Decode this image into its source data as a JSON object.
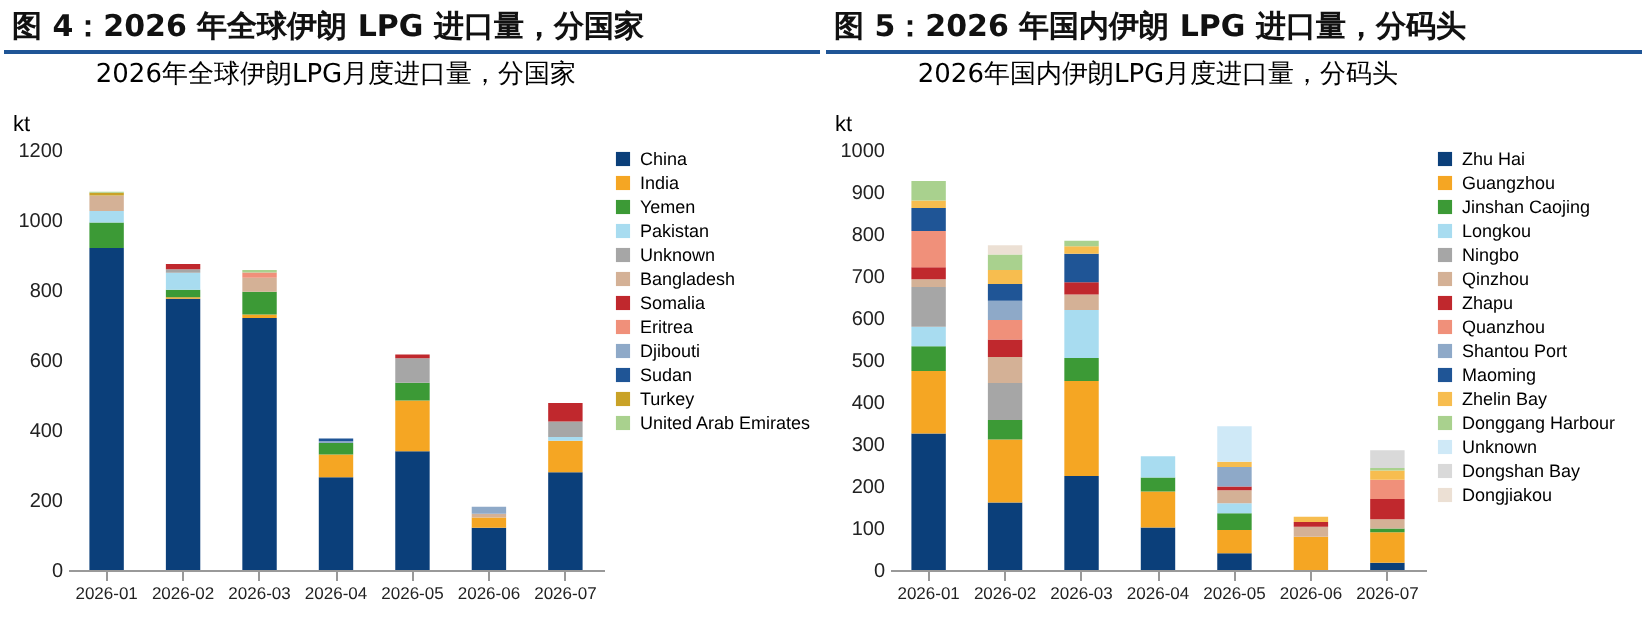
{
  "chart_data": [
    {
      "type": "bar",
      "title": "图 4：2026 年全球伊朗 LPG 进口量，分国家",
      "subtitle": "2026年全球伊朗LPG月度进口量，分国家",
      "ylabel": "kt",
      "stacked": true,
      "legend": "right",
      "categories": [
        "2026-01",
        "2026-02",
        "2026-03",
        "2026-04",
        "2026-05",
        "2026-06",
        "2026-07"
      ],
      "ylim": [
        0,
        1200
      ],
      "yticks": [
        0,
        200,
        400,
        600,
        800,
        1000,
        1200
      ],
      "series": [
        {
          "name": "China",
          "color": "#0b3f7a",
          "values": [
            920,
            775,
            720,
            265,
            339,
            121,
            279
          ]
        },
        {
          "name": "India",
          "color": "#f5a623",
          "values": [
            0,
            4,
            10,
            65,
            145,
            29,
            90
          ]
        },
        {
          "name": "Yemen",
          "color": "#3c9a36",
          "values": [
            73,
            22,
            65,
            33,
            51,
            0,
            0
          ]
        },
        {
          "name": "Pakistan",
          "color": "#a8dcf0",
          "values": [
            33,
            48,
            null,
            null,
            0,
            0,
            11
          ]
        },
        {
          "name": "Unknown",
          "color": "#a6a6a6",
          "values": [
            0,
            10,
            0,
            0,
            70,
            0,
            44
          ]
        },
        {
          "name": "Bangladesh",
          "color": "#d4b196",
          "values": [
            44,
            0,
            40,
            0,
            0,
            11,
            0
          ]
        },
        {
          "name": "Somalia",
          "color": "#c0282d",
          "values": [
            0,
            15,
            0,
            0,
            11,
            0,
            53
          ]
        },
        {
          "name": "Eritrea",
          "color": "#f0907a",
          "values": [
            0,
            0,
            15,
            0,
            0,
            0,
            0
          ]
        },
        {
          "name": "Djibouti",
          "color": "#8ea9c8",
          "values": [
            0,
            0,
            0,
            5,
            0,
            20,
            0
          ]
        },
        {
          "name": "Sudan",
          "color": "#1f5596",
          "values": [
            0,
            0,
            0,
            8,
            0,
            0,
            0
          ]
        },
        {
          "name": "Turkey",
          "color": "#c9a227",
          "values": [
            8,
            0,
            0,
            0,
            0,
            0,
            0
          ]
        },
        {
          "name": "United Arab Emirates",
          "color": "#a9d18e",
          "values": [
            3,
            0,
            7,
            0,
            0,
            0,
            0
          ]
        }
      ]
    },
    {
      "type": "bar",
      "title": "图 5：2026 年国内伊朗 LPG 进口量，分码头",
      "subtitle": "2026年国内伊朗LPG月度进口量，分码头",
      "ylabel": "kt",
      "stacked": true,
      "legend": "right",
      "categories": [
        "2026-01",
        "2026-02",
        "2026-03",
        "2026-04",
        "2026-05",
        "2026-06",
        "2026-07"
      ],
      "ylim": [
        0,
        1000
      ],
      "yticks": [
        0,
        100,
        200,
        300,
        400,
        500,
        600,
        700,
        800,
        900,
        1000
      ],
      "series": [
        {
          "name": "Zhu Hai",
          "color": "#0b3f7a",
          "values": [
            325,
            161,
            224,
            101,
            40,
            0,
            17
          ]
        },
        {
          "name": "Guangzhou",
          "color": "#f5a623",
          "values": [
            149,
            150,
            226,
            86,
            55,
            79,
            73
          ]
        },
        {
          "name": "Jinshan Caojing",
          "color": "#3c9a36",
          "values": [
            59,
            46,
            55,
            33,
            40,
            0,
            9
          ]
        },
        {
          "name": "Longkou",
          "color": "#a8dcf0",
          "values": [
            46,
            0,
            114,
            51,
            24,
            0,
            0
          ]
        },
        {
          "name": "Ningbo",
          "color": "#a6a6a6",
          "values": [
            95,
            88,
            0,
            0,
            0,
            0,
            0
          ]
        },
        {
          "name": "Qinzhou",
          "color": "#d4b196",
          "values": [
            18,
            62,
            37,
            0,
            31,
            24,
            22
          ]
        },
        {
          "name": "Zhapu",
          "color": "#c0282d",
          "values": [
            29,
            42,
            29,
            0,
            9,
            11,
            48
          ]
        },
        {
          "name": "Quanzhou",
          "color": "#f0907a",
          "values": [
            86,
            46,
            0,
            0,
            0,
            0,
            46
          ]
        },
        {
          "name": "Shantou Port",
          "color": "#8ea9c8",
          "values": [
            0,
            46,
            0,
            0,
            46,
            0,
            0
          ]
        },
        {
          "name": "Maoming",
          "color": "#1f5596",
          "values": [
            55,
            40,
            68,
            0,
            0,
            0,
            0
          ]
        },
        {
          "name": "Zhelin Bay",
          "color": "#f7bd4f",
          "values": [
            18,
            33,
            18,
            0,
            13,
            13,
            22
          ]
        },
        {
          "name": "Donggang Harbour",
          "color": "#a9d18e",
          "values": [
            46,
            37,
            13,
            0,
            0,
            0,
            6
          ]
        },
        {
          "name": "Unknown",
          "color": "#cfe9f7",
          "values": [
            0,
            0,
            0,
            0,
            84,
            0,
            0
          ]
        },
        {
          "name": "Dongshan Bay",
          "color": "#d9d9d9",
          "values": [
            0,
            0,
            0,
            0,
            0,
            0,
            42
          ]
        },
        {
          "name": "Dongjiakou",
          "color": "#ece0d4",
          "values": [
            0,
            22,
            0,
            0,
            0,
            0,
            0
          ]
        }
      ]
    }
  ]
}
